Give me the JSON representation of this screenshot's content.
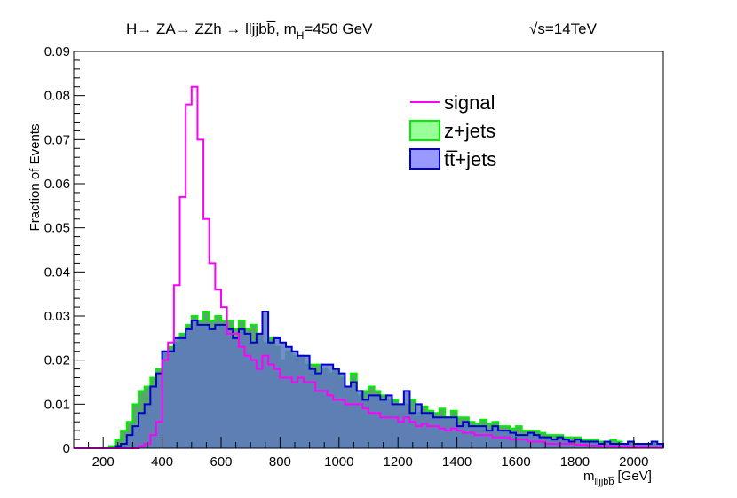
{
  "chart_data": {
    "type": "step-histogram",
    "title": {
      "parts": [
        {
          "text": "H",
          "style": "normal"
        },
        {
          "text": "→",
          "style": "normal"
        },
        {
          "text": " ZA",
          "style": "normal"
        },
        {
          "text": "→",
          "style": "normal"
        },
        {
          "text": " ZZh ",
          "style": "normal"
        },
        {
          "text": "→",
          "style": "normal"
        },
        {
          "text": " lljjbb",
          "style": "normal"
        },
        {
          "text": "̅",
          "style": "overline-last"
        },
        {
          "text": ", m",
          "style": "normal"
        },
        {
          "text": "H",
          "style": "sub"
        },
        {
          "text": "=450 GeV",
          "style": "normal"
        }
      ]
    },
    "title_plain": "H→ ZA→ ZZh → lljjbb̅, m",
    "title_sub": "H",
    "title_tail": "=450 GeV",
    "energy_label": "√s=14TeV",
    "energy_sqrt": "√",
    "energy_text": "s=14TeV",
    "ylabel": "Fraction of Events",
    "xlabel_main": "m",
    "xlabel_sub": "lljjbb̅",
    "xlabel_unit": "[GeV]",
    "xlim": [
      100,
      2100
    ],
    "ylim": [
      0,
      0.09
    ],
    "x_ticks": [
      200,
      400,
      600,
      800,
      1000,
      1200,
      1400,
      1600,
      1800,
      2000
    ],
    "y_ticks": [
      {
        "v": 0,
        "label": "0"
      },
      {
        "v": 0.01,
        "label": "0.01"
      },
      {
        "v": 0.02,
        "label": "0.02"
      },
      {
        "v": 0.03,
        "label": "0.03"
      },
      {
        "v": 0.04,
        "label": "0.04"
      },
      {
        "v": 0.05,
        "label": "0.05"
      },
      {
        "v": 0.06,
        "label": "0.06"
      },
      {
        "v": 0.07,
        "label": "0.07"
      },
      {
        "v": 0.08,
        "label": "0.08"
      },
      {
        "v": 0.09,
        "label": "0.09"
      }
    ],
    "bin_width": 20,
    "bin_start": 100,
    "legend": [
      {
        "name": "signal",
        "type": "line",
        "color": "#ff00ff"
      },
      {
        "name": "z+jets",
        "type": "box",
        "fill": "#99ff99",
        "stroke": "#00ee00"
      },
      {
        "name": "tt̅+jets",
        "type": "box",
        "fill": "#9999ff",
        "stroke": "#0000cc"
      }
    ],
    "legend_placement": "top-right",
    "series": [
      {
        "name": "z+jets",
        "fill": "#5aa869",
        "stroke": "#00ee00",
        "values": [
          0,
          0,
          0,
          0,
          0,
          0,
          0.0005,
          0.002,
          0.004,
          0.006,
          0.01,
          0.013,
          0.014,
          0.016,
          0.018,
          0.022,
          0.023,
          0.024,
          0.026,
          0.028,
          0.03,
          0.029,
          0.031,
          0.029,
          0.03,
          0.029,
          0.029,
          0.027,
          0.029,
          0.027,
          0.028,
          0.026,
          0.024,
          0.025,
          0.023,
          0.02,
          0.022,
          0.021,
          0.021,
          0.019,
          0.019,
          0.019,
          0.018,
          0.017,
          0.018,
          0.016,
          0.014,
          0.017,
          0.012,
          0.013,
          0.014,
          0.013,
          0.012,
          0.011,
          0.011,
          0.01,
          0.01,
          0.011,
          0.008,
          0.0095,
          0.0085,
          0.008,
          0.009,
          0.007,
          0.0085,
          0.007,
          0.007,
          0.006,
          0.0055,
          0.0065,
          0.0055,
          0.006,
          0.005,
          0.005,
          0.0045,
          0.005,
          0.004,
          0.004,
          0.004,
          0.0035,
          0.003,
          0.003,
          0.003,
          0.0025,
          0.0025,
          0.0025,
          0.002,
          0.002,
          0.002,
          0.0015,
          0.0015,
          0.002,
          0.0015,
          0.001,
          0.0015,
          0.001,
          0.001,
          0.001,
          0.001,
          0.001
        ]
      },
      {
        "name": "tt̅+jets",
        "fill": "#5e78c2",
        "stroke": "#0000cc",
        "values": [
          0,
          0,
          0,
          0,
          0,
          0,
          0,
          0.0005,
          0.001,
          0.003,
          0.005,
          0.008,
          0.01,
          0.014,
          0.017,
          0.022,
          0.022,
          0.025,
          0.025,
          0.027,
          0.029,
          0.028,
          0.028,
          0.027,
          0.028,
          0.028,
          0.027,
          0.025,
          0.027,
          0.026,
          0.024,
          0.026,
          0.031,
          0.024,
          0.025,
          0.024,
          0.023,
          0.022,
          0.021,
          0.021,
          0.018,
          0.017,
          0.019,
          0.019,
          0.018,
          0.017,
          0.014,
          0.015,
          0.013,
          0.011,
          0.012,
          0.012,
          0.011,
          0.012,
          0.01,
          0.01,
          0.013,
          0.008,
          0.01,
          0.008,
          0.008,
          0.007,
          0.007,
          0.007,
          0.007,
          0.005,
          0.006,
          0.005,
          0.005,
          0.005,
          0.004,
          0.005,
          0.004,
          0.004,
          0.0035,
          0.003,
          0.003,
          0.0035,
          0.003,
          0.0025,
          0.0025,
          0.002,
          0.0025,
          0.002,
          0.0015,
          0.002,
          0.0015,
          0.0015,
          0.0015,
          0.001,
          0.0015,
          0.001,
          0.001,
          0.001,
          0.0015,
          0.001,
          0.001,
          0.001,
          0.0015,
          0.001
        ]
      },
      {
        "name": "signal",
        "fill": "none",
        "stroke": "#ff00ff",
        "values": [
          0,
          0,
          0,
          0,
          0,
          0,
          0,
          0,
          0,
          0,
          0,
          0.0005,
          0.001,
          0.003,
          0.006,
          0.02,
          0.024,
          0.037,
          0.057,
          0.078,
          0.082,
          0.07,
          0.052,
          0.042,
          0.036,
          0.032,
          0.026,
          0.026,
          0.023,
          0.021,
          0.02,
          0.018,
          0.021,
          0.019,
          0.018,
          0.016,
          0.016,
          0.015,
          0.016,
          0.015,
          0.015,
          0.013,
          0.013,
          0.012,
          0.011,
          0.011,
          0.01,
          0.01,
          0.01,
          0.009,
          0.008,
          0.008,
          0.007,
          0.007,
          0.007,
          0.006,
          0.007,
          0.006,
          0.005,
          0.0055,
          0.005,
          0.005,
          0.0045,
          0.004,
          0.0045,
          0.004,
          0.0035,
          0.0035,
          0.003,
          0.003,
          0.003,
          0.0025,
          0.0025,
          0.0025,
          0.002,
          0.002,
          0.002,
          0.0015,
          0.0015,
          0.0015,
          0.001,
          0.001,
          0.001,
          0.001,
          0.001,
          0.0008,
          0.0008,
          0.0006,
          0.0006,
          0.0005,
          0.0005,
          0.0005,
          0.0004,
          0.0004,
          0.0003,
          0.0003,
          0.0003,
          0.0002,
          0.0002,
          0.0002
        ]
      }
    ]
  }
}
